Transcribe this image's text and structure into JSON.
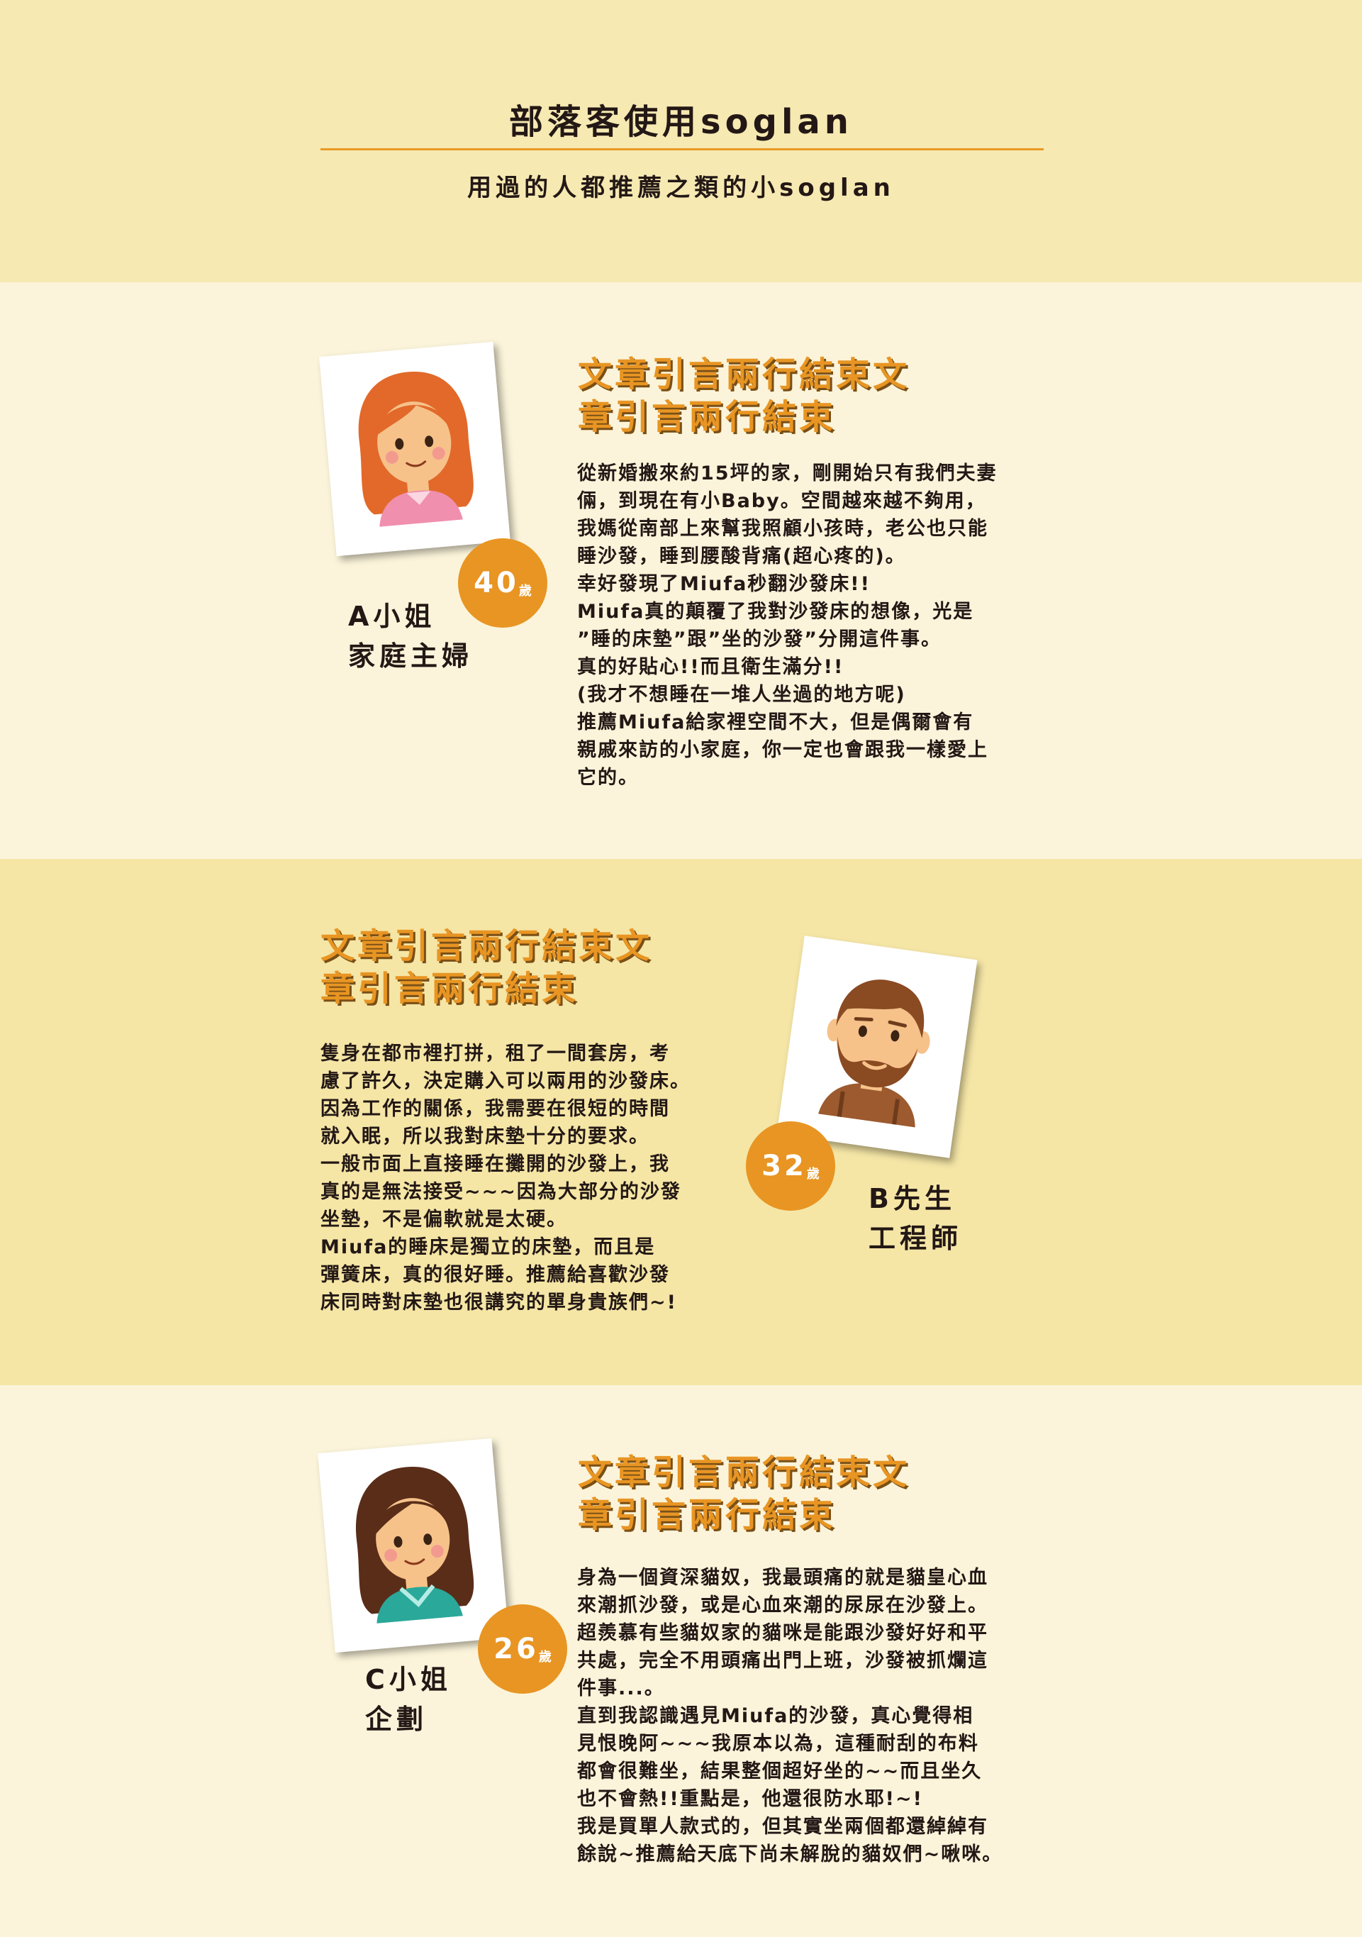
{
  "header": {
    "title": "部落客使用soglan",
    "subtitle": "用過的人都推薦之類的小soglan"
  },
  "testimonials": [
    {
      "photo_icon": "woman-orange-hair-portrait",
      "age": "40",
      "age_unit": "歲",
      "name": "A小姐",
      "role": "家庭主婦",
      "quote_lines": [
        "文章引言兩行結束文",
        "章引言兩行結束"
      ],
      "body_lines": [
        "從新婚搬來約15坪的家，剛開始只有我們夫妻",
        "倆，到現在有小Baby。空間越來越不夠用，",
        "我媽從南部上來幫我照顧小孩時，老公也只能",
        "睡沙發，睡到腰酸背痛(超心疼的)。",
        "幸好發現了Miufa秒翻沙發床!!",
        "Miufa真的顛覆了我對沙發床的想像，光是",
        "”睡的床墊”跟”坐的沙發”分開這件事。",
        "真的好貼心!!而且衛生滿分!!",
        "(我才不想睡在一堆人坐過的地方呢)",
        "推薦Miufa給家裡空間不大，但是偶爾會有",
        "親戚來訪的小家庭，你一定也會跟我一樣愛上",
        "它的。"
      ]
    },
    {
      "photo_icon": "bearded-man-portrait",
      "age": "32",
      "age_unit": "歲",
      "name": "B先生",
      "role": "工程師",
      "quote_lines": [
        "文章引言兩行結束文",
        "章引言兩行結束"
      ],
      "body_lines": [
        "隻身在都市裡打拼，租了一間套房，考",
        "慮了許久，決定購入可以兩用的沙發床。",
        "因為工作的關係，我需要在很短的時間",
        "就入眠，所以我對床墊十分的要求。",
        "一般市面上直接睡在攤開的沙發上，我",
        "真的是無法接受~~~因為大部分的沙發",
        "坐墊，不是偏軟就是太硬。",
        "Miufa的睡床是獨立的床墊，而且是",
        "彈簧床，真的很好睡。推薦給喜歡沙發",
        "床同時對床墊也很講究的單身貴族們~!"
      ]
    },
    {
      "photo_icon": "woman-brown-hair-portrait",
      "age": "26",
      "age_unit": "歲",
      "name": "C小姐",
      "role": "企劃",
      "quote_lines": [
        "文章引言兩行結束文",
        "章引言兩行結束"
      ],
      "body_lines": [
        "身為一個資深貓奴，我最頭痛的就是貓皇心血",
        "來潮抓沙發，或是心血來潮的尿尿在沙發上。",
        "超羨慕有些貓奴家的貓咪是能跟沙發好好和平",
        "共處，完全不用頭痛出門上班，沙發被抓爛這",
        "件事...。",
        "直到我認識遇見Miufa的沙發，真心覺得相",
        "見恨晚阿~~~我原本以為，這種耐刮的布料",
        "都會很難坐，結果整個超好坐的~~而且坐久",
        "也不會熱!!重點是，他還很防水耶!~!",
        "我是買單人款式的，但其實坐兩個都還綽綽有",
        "餘說~推薦給天底下尚未解脫的貓奴們~啾咪。"
      ]
    }
  ]
}
